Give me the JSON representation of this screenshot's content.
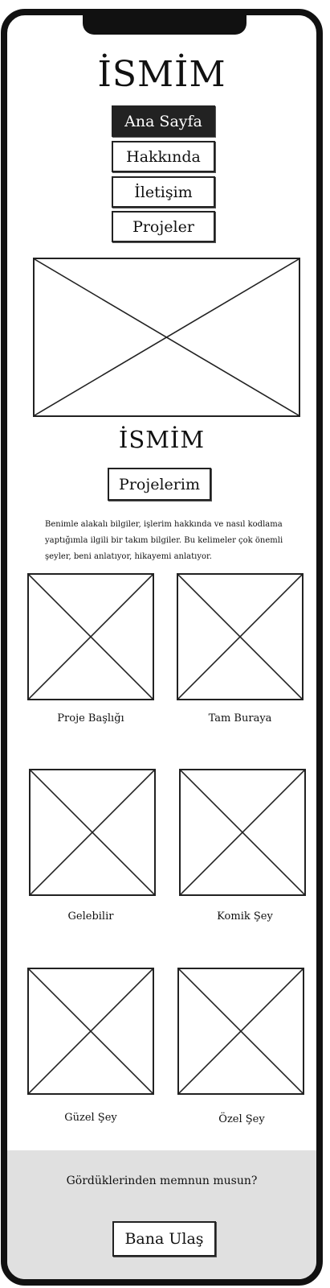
{
  "header": {
    "title": "İSMİM"
  },
  "nav": {
    "items": [
      {
        "label": "Ana Sayfa",
        "active": true
      },
      {
        "label": "Hakkında",
        "active": false
      },
      {
        "label": "İletişim",
        "active": false
      },
      {
        "label": "Projeler",
        "active": false
      }
    ]
  },
  "hero": {
    "image": "image-placeholder"
  },
  "profile": {
    "title": "İSMİM",
    "section_button": "Projelerim",
    "about_text": "Benimle alakalı bilgiler, işlerim hakkında ve nasıl kodlama yaptığımla ilgili bir takım bilgiler. Bu kelimeler çok önemli şeyler, beni anlatıyor, hikayemi anlatıyor."
  },
  "projects": [
    {
      "caption": "Proje Başlığı"
    },
    {
      "caption": "Tam Buraya"
    },
    {
      "caption": "Gelebilir"
    },
    {
      "caption": "Komik Şey"
    },
    {
      "caption": "Güzel Şey"
    },
    {
      "caption": "Özel Şey"
    }
  ],
  "footer": {
    "question": "Gördüklerinden memnun musun?",
    "contact_button": "Bana Ulaş"
  },
  "colors": {
    "ink": "#111111",
    "active_bg": "#222222",
    "footer_bg": "#e0e0e0"
  }
}
